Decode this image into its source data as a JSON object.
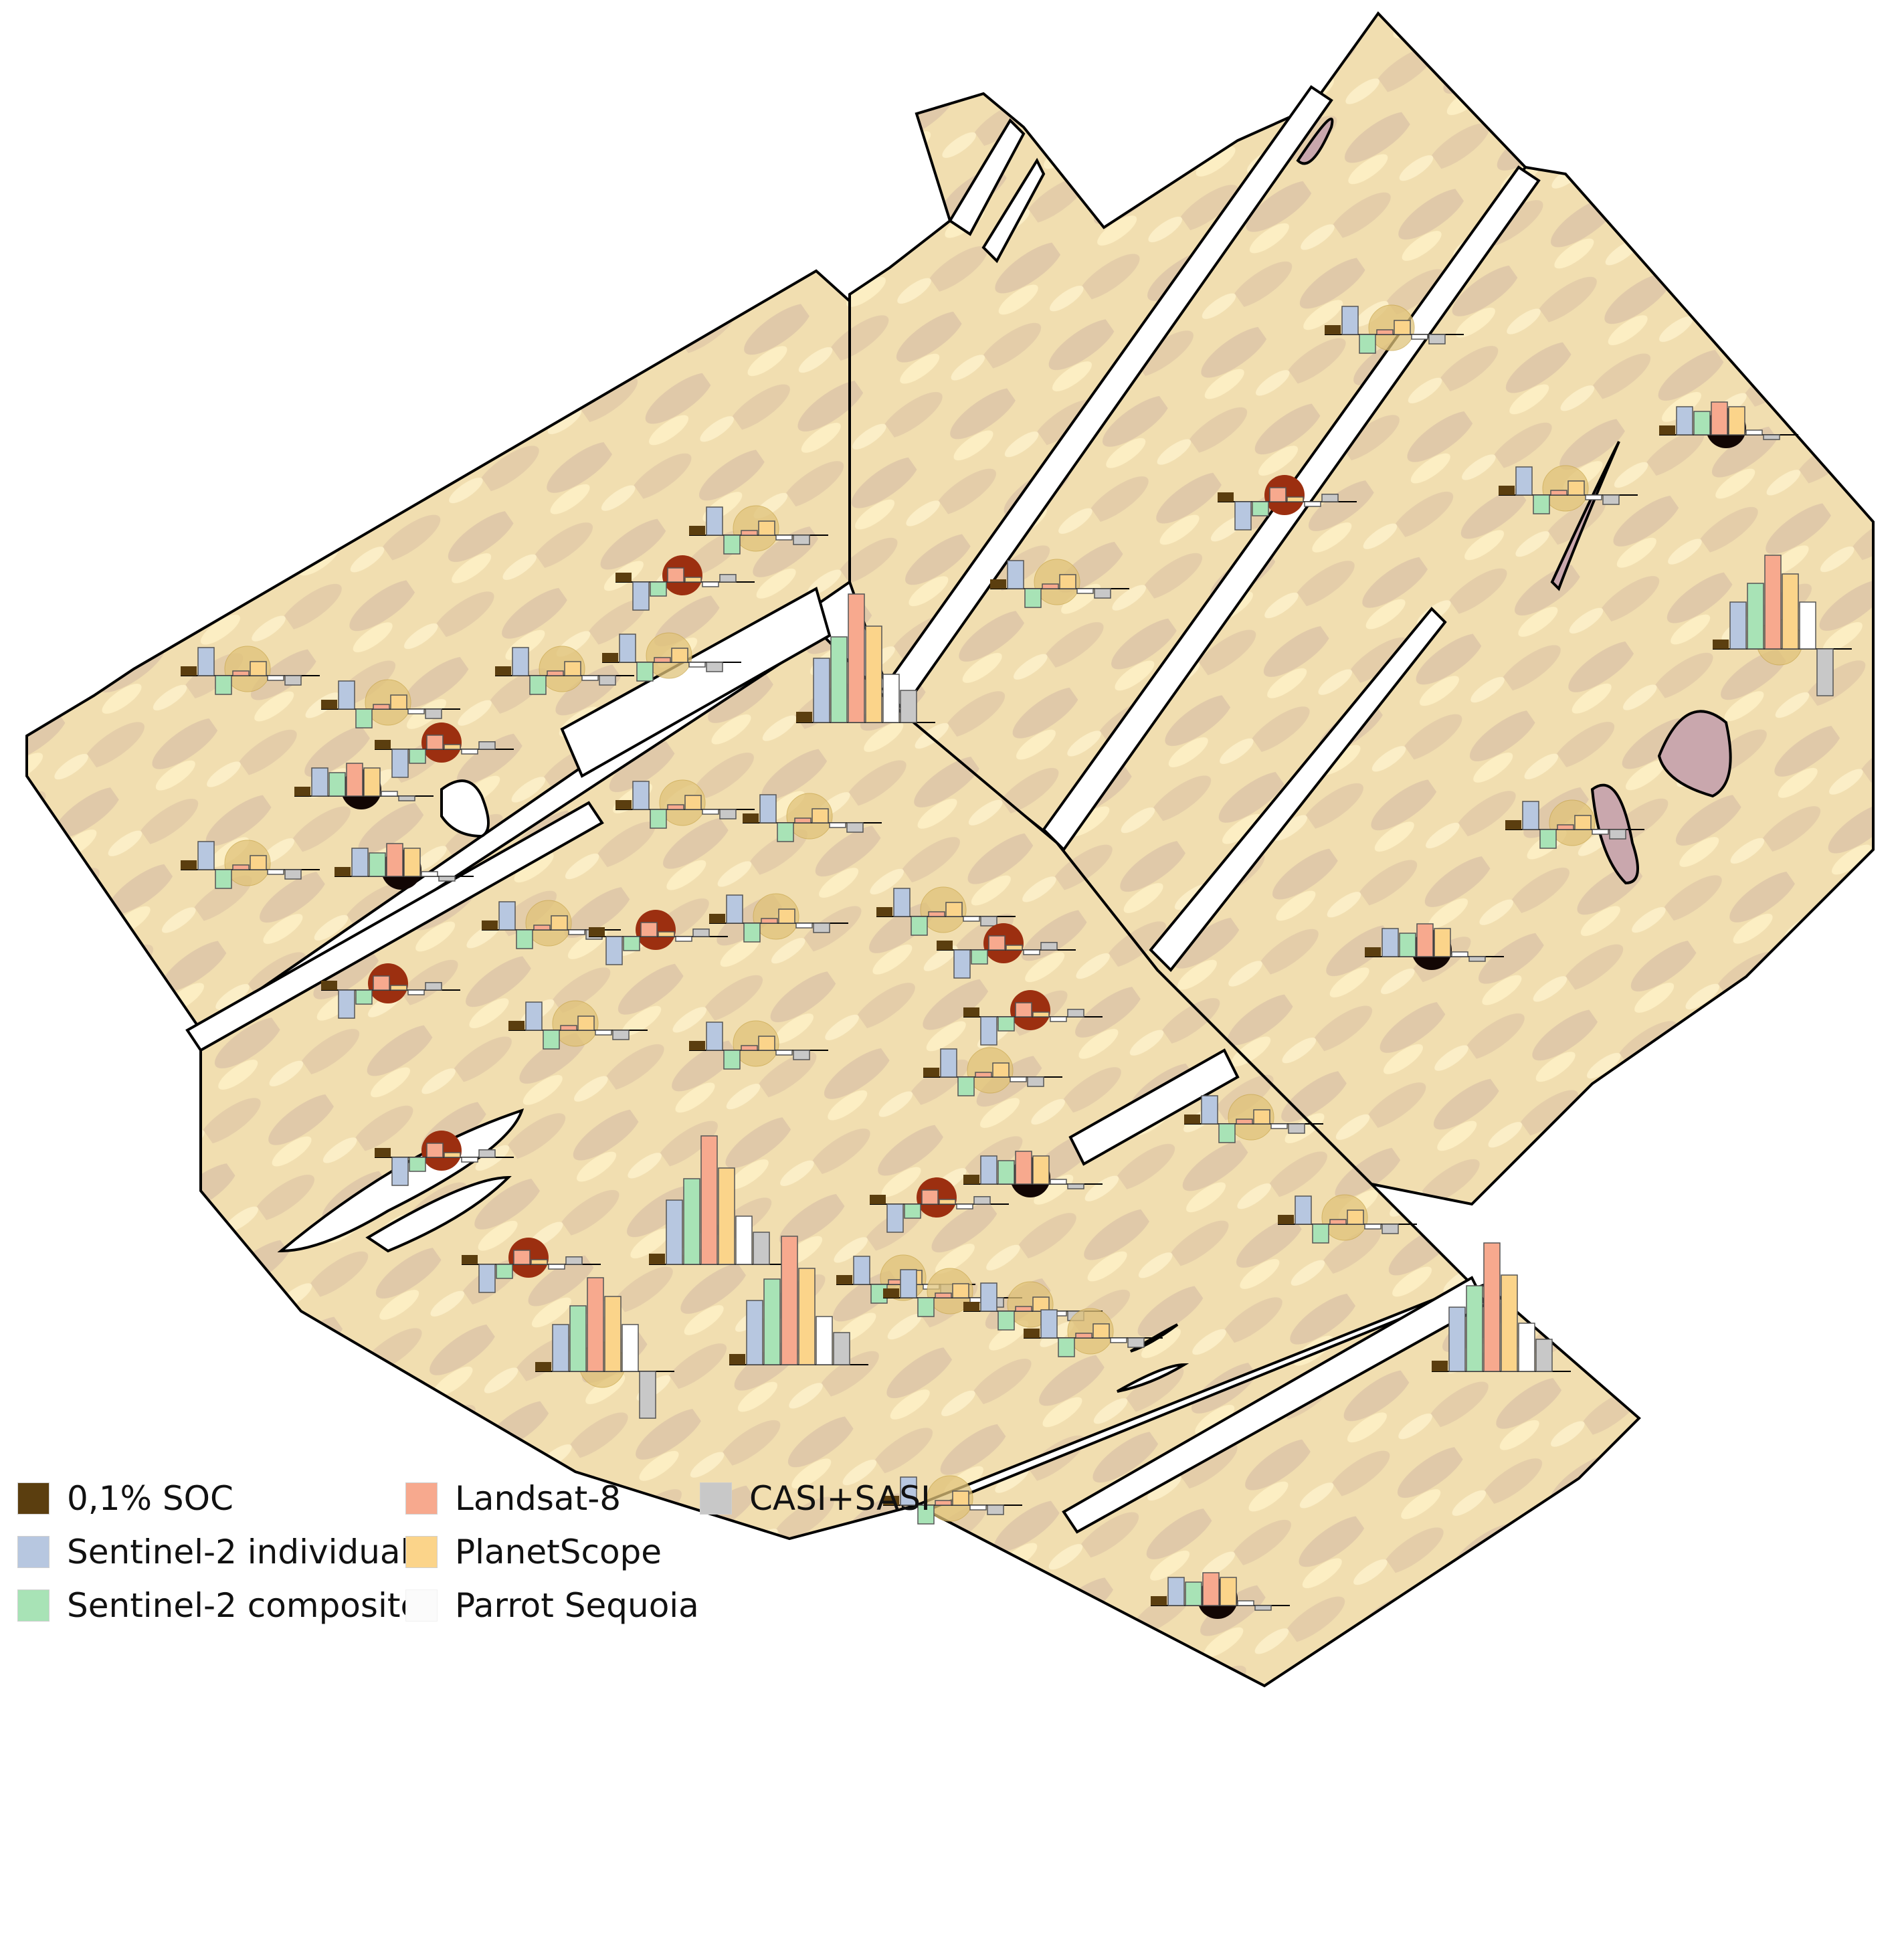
{
  "map": {
    "fields": [
      "field-west",
      "field-north",
      "field-northeast",
      "field-east",
      "field-central",
      "field-southeast"
    ]
  },
  "legend": {
    "items": [
      {
        "label": "0,1% SOC",
        "color": "#5b3e0f"
      },
      {
        "label": "Sentinel-2 individual",
        "color": "#b7c7e0"
      },
      {
        "label": "Sentinel-2 composite",
        "color": "#a8e3b6"
      },
      {
        "label": "Landsat-8",
        "color": "#f7a98e"
      },
      {
        "label": "PlanetScope",
        "color": "#fbd48a"
      },
      {
        "label": "Parrot Sequoia",
        "color": "#fbfbfb"
      },
      {
        "label": "CASI+SASI",
        "color": "#c8c8c8"
      }
    ]
  },
  "colors": {
    "soc": "#5b3e0f",
    "s2_individual": "#b7c7e0",
    "s2_composite": "#a8e3b6",
    "landsat8": "#f7a98e",
    "planetscope": "#fbd48a",
    "parrot_sequoia": "#ffffff",
    "casi_sasi": "#c8c8c8",
    "soc_circle_low": "#e0c37a",
    "soc_circle_mid": "#9c2f10",
    "soc_circle_high": "#120604",
    "field_fill": "#f2dfae",
    "field_outline": "#000000"
  },
  "sample_points": [
    {
      "values": [
        0.1,
        0.3,
        -0.2,
        0.05,
        0.15,
        -0.05,
        -0.1
      ],
      "soc_level": "low"
    },
    {
      "values": [
        0.1,
        -0.3,
        -0.15,
        0.15,
        0.05,
        -0.05,
        0.08
      ],
      "soc_level": "mid"
    },
    {
      "values": [
        0.1,
        0.3,
        0.25,
        0.35,
        0.3,
        0.05,
        -0.05
      ],
      "soc_level": "high"
    },
    {
      "values": [
        0.1,
        0.6,
        0.8,
        1.2,
        0.9,
        0.45,
        0.3
      ],
      "soc_level": "none"
    },
    {
      "values": [
        0.1,
        0.5,
        0.7,
        1.0,
        0.8,
        0.5,
        -0.5
      ],
      "soc_level": "low"
    }
  ]
}
